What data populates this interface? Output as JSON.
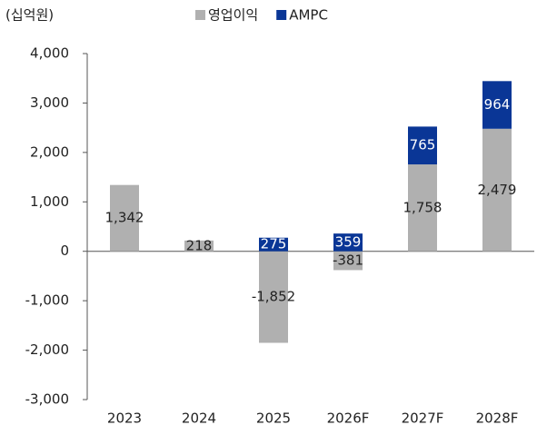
{
  "chart_data": {
    "type": "bar",
    "stacked": true,
    "unit_label": "(십억원)",
    "categories": [
      "2023",
      "2024",
      "2025",
      "2026F",
      "2027F",
      "2028F"
    ],
    "series": [
      {
        "name": "영업이익",
        "color": "#b0b0b0",
        "values": [
          1342,
          218,
          -1852,
          -381,
          1758,
          2479
        ],
        "value_labels": [
          "1,342",
          "218",
          "-1,852",
          "-381",
          "1,758",
          "2,479"
        ]
      },
      {
        "name": "AMPC",
        "color": "#0a3696",
        "values": [
          null,
          null,
          275,
          359,
          765,
          964
        ]
      }
    ],
    "ylim": [
      -3000,
      4000
    ],
    "yticks": [
      {
        "value": -3000,
        "label": "-3,000"
      },
      {
        "value": -2000,
        "label": "-2,000"
      },
      {
        "value": -1000,
        "label": "-1,000"
      },
      0,
      {
        "value": 1000,
        "label": "1,000"
      },
      {
        "value": 2000,
        "label": "2,000"
      },
      {
        "value": 3000,
        "label": "3,000"
      },
      {
        "value": 4000,
        "label": "4,000"
      }
    ],
    "legend": "top"
  }
}
